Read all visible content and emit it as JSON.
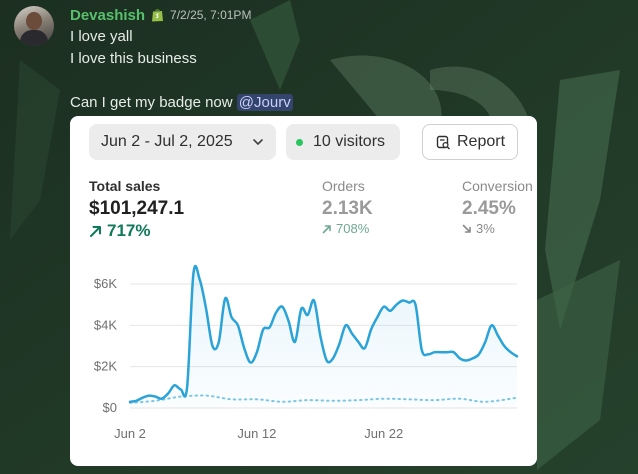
{
  "message": {
    "username": "Devashish",
    "timestamp": "7/2/25, 7:01PM",
    "lines": [
      "I love yall",
      "I love this business",
      "Can I get my badge now"
    ],
    "mention": "@Jourv"
  },
  "card": {
    "date_range": "Jun 2 - Jul 2, 2025",
    "visitors": "10 visitors",
    "report_label": "Report",
    "metrics": [
      {
        "label": "Total sales",
        "value": "$101,247.1",
        "delta": "717%",
        "direction": "up"
      },
      {
        "label": "Orders",
        "value": "2.13K",
        "delta": "708%",
        "direction": "up"
      },
      {
        "label": "Conversion",
        "value": "2.45%",
        "delta": "3%",
        "direction": "down"
      }
    ]
  },
  "chart_data": {
    "type": "line",
    "y_ticks": [
      "$6K",
      "$4K",
      "$2K",
      "$0"
    ],
    "x_ticks": [
      "Jun 2",
      "Jun 12",
      "Jun 22"
    ],
    "ylim": [
      0,
      6000
    ],
    "xlim": [
      1,
      31.5
    ],
    "series": [
      {
        "style": "solid",
        "x": [
          1,
          1.5,
          2,
          2.5,
          3,
          3.5,
          4,
          4.5,
          5,
          5.5,
          6,
          6.5,
          7,
          7.5,
          8,
          8.5,
          9,
          9.5,
          10,
          10.5,
          11,
          11.5,
          12,
          12.5,
          13,
          13.5,
          14,
          14.5,
          15,
          15.5,
          16,
          16.5,
          17,
          17.5,
          18,
          18.5,
          19,
          19.5,
          20,
          20.5,
          21,
          21.5,
          22,
          22.5,
          23,
          23.5,
          24,
          24.5,
          25,
          25.5,
          26,
          26.5,
          27,
          27.5,
          28,
          28.5,
          29,
          29.5,
          30,
          30.5,
          31,
          31.5
        ],
        "values": [
          300,
          350,
          500,
          600,
          550,
          450,
          700,
          1100,
          900,
          1000,
          6500,
          6200,
          4800,
          3000,
          3200,
          5300,
          4400,
          4000,
          2900,
          2200,
          2700,
          3800,
          3900,
          4600,
          4900,
          4200,
          3200,
          4800,
          4500,
          5200,
          3500,
          2300,
          2400,
          3100,
          4000,
          3600,
          3200,
          2900,
          3800,
          4400,
          4900,
          4700,
          5000,
          5200,
          5100,
          5000,
          2800,
          2600,
          2700,
          2700,
          2700,
          2700,
          2400,
          2300,
          2400,
          2600,
          3200,
          4000,
          3500,
          3000,
          2700,
          2500
        ]
      },
      {
        "style": "dotted",
        "x": [
          1,
          3,
          5,
          7,
          9,
          11,
          13,
          15,
          17,
          19,
          21,
          23,
          25,
          27,
          29,
          31.5
        ],
        "values": [
          250,
          350,
          550,
          600,
          420,
          420,
          300,
          380,
          350,
          380,
          450,
          420,
          380,
          450,
          300,
          500
        ]
      }
    ]
  }
}
